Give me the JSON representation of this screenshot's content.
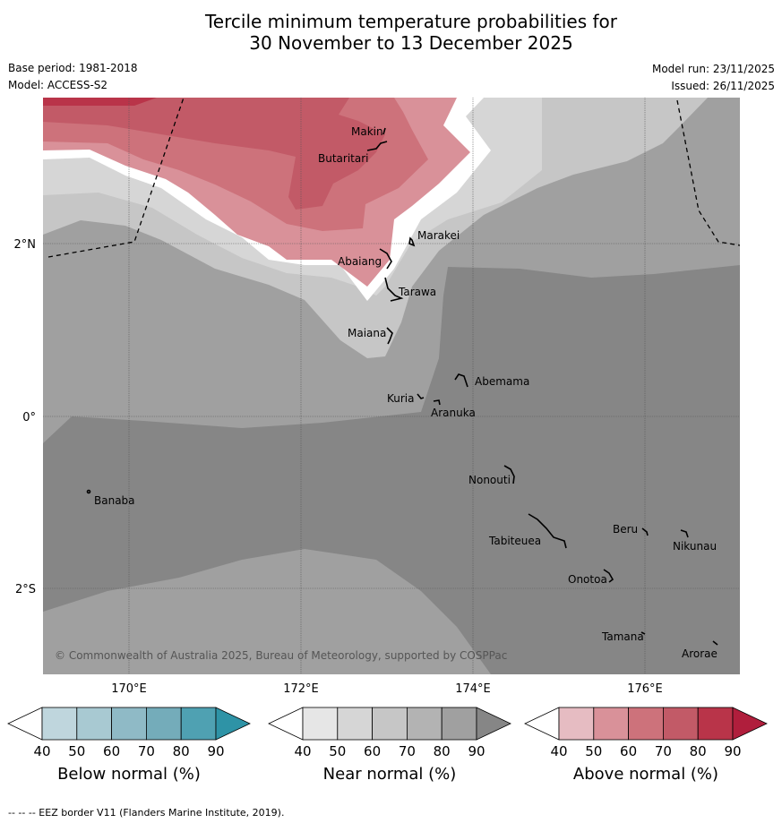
{
  "title_line1": "Tercile minimum temperature probabilities for",
  "title_line2": "30 November to 13 December 2025",
  "base_period": "Base period: 1981-2018",
  "model": "Model: ACCESS-S2",
  "model_run": "Model run: 23/11/2025",
  "issued": "Issued: 26/11/2025",
  "copyright": "© Commonwealth of Australia 2025, Bureau of Meteorology, supported by COSPPac",
  "lon_labels": [
    "170°E",
    "172°E",
    "174°E",
    "176°E"
  ],
  "lat_labels": [
    "2°N",
    "0°",
    "2°S"
  ],
  "islands": [
    "Makin",
    "Butaritari",
    "Marakei",
    "Abaiang",
    "Tarawa",
    "Maiana",
    "Abemama",
    "Kuria",
    "Aranuka",
    "Nonouti",
    "Banaba",
    "Beru",
    "Tabiteuea",
    "Nikunau",
    "Onotoa",
    "Tamana",
    "Arorae"
  ],
  "colorbars": [
    {
      "title": "Below normal (%)",
      "ticks": [
        "40",
        "50",
        "60",
        "70",
        "80",
        "90"
      ],
      "colors": [
        "#bfd6dd",
        "#a8c9d2",
        "#8fbac6",
        "#74acba",
        "#4fa1b2",
        "#2e93a6"
      ]
    },
    {
      "title": "Near normal (%)",
      "ticks": [
        "40",
        "50",
        "60",
        "70",
        "80",
        "90"
      ],
      "colors": [
        "#e6e6e6",
        "#d6d6d6",
        "#c6c6c6",
        "#b3b3b3",
        "#a0a0a0",
        "#868686"
      ]
    },
    {
      "title": "Above normal (%)",
      "ticks": [
        "40",
        "50",
        "60",
        "70",
        "80",
        "90"
      ],
      "colors": [
        "#e6bcc2",
        "#d99199",
        "#cd727b",
        "#c25a67",
        "#b93449",
        "#b01e3c"
      ]
    }
  ],
  "footnote": "--  --  -- EEZ border V11 (Flanders Marine Institute, 2019)."
}
